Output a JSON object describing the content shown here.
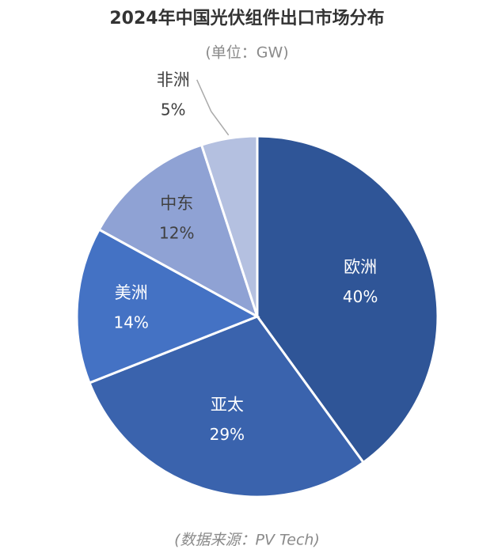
{
  "chart_data": {
    "type": "pie",
    "title": "2024年中国光伏组件出口市场分布",
    "subtitle": "(单位：GW)",
    "source": "(数据来源：PV Tech)",
    "categories": [
      "欧洲",
      "亚太",
      "美洲",
      "中东",
      "非洲"
    ],
    "values": [
      40,
      29,
      14,
      12,
      5
    ],
    "value_labels": [
      "40%",
      "29%",
      "14%",
      "12%",
      "5%"
    ],
    "colors": [
      "#2f5597",
      "#3a63ad",
      "#4472c4",
      "#8fa2d4",
      "#b4c0e0"
    ]
  }
}
